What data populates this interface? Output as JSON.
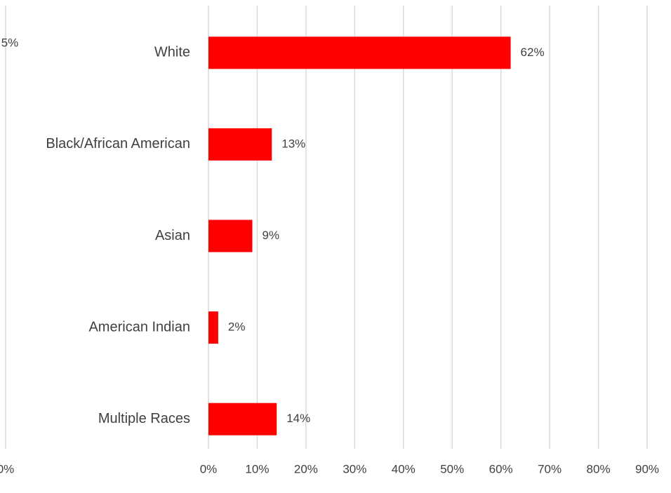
{
  "chart_data": {
    "type": "bar",
    "orientation": "horizontal",
    "categories": [
      "White",
      "Black/African American",
      "Asian",
      "American Indian",
      "Multiple Races"
    ],
    "values": [
      62,
      13,
      9,
      2,
      14
    ],
    "data_labels": [
      "62%",
      "13%",
      "9%",
      "2%",
      "14%"
    ],
    "xlim": [
      0,
      90
    ],
    "x_ticks": [
      "0%",
      "10%",
      "20%",
      "30%",
      "40%",
      "50%",
      "60%",
      "70%",
      "80%",
      "90%"
    ],
    "bar_color": "#ff0000",
    "grid": true,
    "xlabel": "",
    "ylabel": "",
    "title": "",
    "left_cut_fragments": {
      "data_label": "5%",
      "tick_label": "0%"
    }
  }
}
